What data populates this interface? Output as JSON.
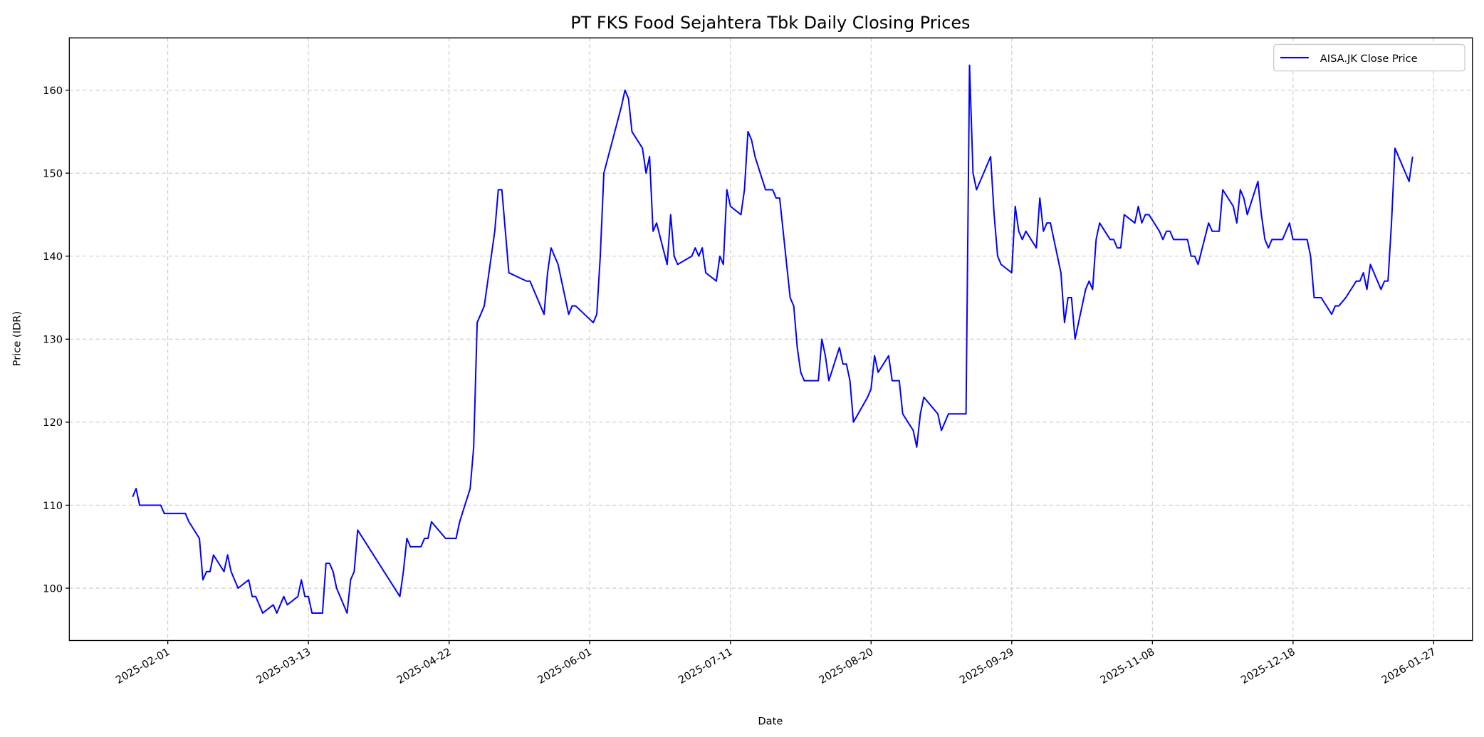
{
  "chart_data": {
    "type": "line",
    "title": "PT FKS Food Sejahtera Tbk Daily Closing Prices",
    "xlabel": "Date",
    "ylabel": "Price (IDR)",
    "xlim": [
      "2025-01-04",
      "2026-02-07"
    ],
    "ylim": [
      93.7,
      166.3
    ],
    "grid": true,
    "legend": "top-right",
    "x_ticks": [
      "2025-02-01",
      "2025-03-13",
      "2025-04-22",
      "2025-06-01",
      "2025-07-11",
      "2025-08-20",
      "2025-09-29",
      "2025-11-08",
      "2025-12-18",
      "2026-01-27"
    ],
    "y_ticks": [
      100,
      110,
      120,
      130,
      140,
      150,
      160
    ],
    "series": [
      {
        "name": "AISA.JK Close Price",
        "color": "#0000ff",
        "x": [
          "2025-01-22",
          "2025-01-23",
          "2025-01-24",
          "2025-01-30",
          "2025-01-31",
          "2025-02-06",
          "2025-02-07",
          "2025-02-10",
          "2025-02-11",
          "2025-02-12",
          "2025-02-13",
          "2025-02-14",
          "2025-02-17",
          "2025-02-18",
          "2025-02-19",
          "2025-02-21",
          "2025-02-24",
          "2025-02-25",
          "2025-02-26",
          "2025-02-28",
          "2025-03-03",
          "2025-03-04",
          "2025-03-06",
          "2025-03-07",
          "2025-03-10",
          "2025-03-11",
          "2025-03-12",
          "2025-03-13",
          "2025-03-14",
          "2025-03-17",
          "2025-03-18",
          "2025-03-19",
          "2025-03-20",
          "2025-03-21",
          "2025-03-24",
          "2025-03-25",
          "2025-03-26",
          "2025-03-27",
          "2025-04-08",
          "2025-04-09",
          "2025-04-10",
          "2025-04-11",
          "2025-04-14",
          "2025-04-15",
          "2025-04-16",
          "2025-04-17",
          "2025-04-21",
          "2025-04-24",
          "2025-04-25",
          "2025-04-28",
          "2025-04-29",
          "2025-04-30",
          "2025-05-02",
          "2025-05-05",
          "2025-05-06",
          "2025-05-07",
          "2025-05-09",
          "2025-05-14",
          "2025-05-15",
          "2025-05-19",
          "2025-05-20",
          "2025-05-21",
          "2025-05-23",
          "2025-05-26",
          "2025-05-27",
          "2025-05-28",
          "2025-06-02",
          "2025-06-03",
          "2025-06-04",
          "2025-06-05",
          "2025-06-10",
          "2025-06-11",
          "2025-06-12",
          "2025-06-13",
          "2025-06-16",
          "2025-06-17",
          "2025-06-18",
          "2025-06-19",
          "2025-06-20",
          "2025-06-23",
          "2025-06-24",
          "2025-06-25",
          "2025-06-26",
          "2025-06-30",
          "2025-07-01",
          "2025-07-02",
          "2025-07-03",
          "2025-07-04",
          "2025-07-07",
          "2025-07-08",
          "2025-07-09",
          "2025-07-10",
          "2025-07-11",
          "2025-07-14",
          "2025-07-15",
          "2025-07-16",
          "2025-07-17",
          "2025-07-18",
          "2025-07-21",
          "2025-07-23",
          "2025-07-24",
          "2025-07-25",
          "2025-07-28",
          "2025-07-29",
          "2025-07-30",
          "2025-07-31",
          "2025-08-01",
          "2025-08-05",
          "2025-08-06",
          "2025-08-07",
          "2025-08-08",
          "2025-08-11",
          "2025-08-12",
          "2025-08-13",
          "2025-08-14",
          "2025-08-15",
          "2025-08-19",
          "2025-08-20",
          "2025-08-21",
          "2025-08-22",
          "2025-08-25",
          "2025-08-26",
          "2025-08-28",
          "2025-08-29",
          "2025-09-01",
          "2025-09-02",
          "2025-09-03",
          "2025-09-04",
          "2025-09-08",
          "2025-09-09",
          "2025-09-11",
          "2025-09-16",
          "2025-09-17",
          "2025-09-18",
          "2025-09-19",
          "2025-09-23",
          "2025-09-24",
          "2025-09-25",
          "2025-09-26",
          "2025-09-29",
          "2025-09-30",
          "2025-10-01",
          "2025-10-02",
          "2025-10-03",
          "2025-10-06",
          "2025-10-07",
          "2025-10-08",
          "2025-10-09",
          "2025-10-10",
          "2025-10-13",
          "2025-10-14",
          "2025-10-15",
          "2025-10-16",
          "2025-10-17",
          "2025-10-20",
          "2025-10-21",
          "2025-10-22",
          "2025-10-23",
          "2025-10-24",
          "2025-10-27",
          "2025-10-28",
          "2025-10-29",
          "2025-10-30",
          "2025-10-31",
          "2025-11-03",
          "2025-11-04",
          "2025-11-05",
          "2025-11-06",
          "2025-11-07",
          "2025-11-10",
          "2025-11-11",
          "2025-11-12",
          "2025-11-13",
          "2025-11-14",
          "2025-11-18",
          "2025-11-19",
          "2025-11-20",
          "2025-11-21",
          "2025-11-24",
          "2025-11-25",
          "2025-11-27",
          "2025-11-28",
          "2025-12-01",
          "2025-12-02",
          "2025-12-03",
          "2025-12-04",
          "2025-12-05",
          "2025-12-08",
          "2025-12-09",
          "2025-12-10",
          "2025-12-11",
          "2025-12-12",
          "2025-12-15",
          "2025-12-16",
          "2025-12-17",
          "2025-12-18",
          "2025-12-22",
          "2025-12-23",
          "2025-12-24",
          "2025-12-26",
          "2025-12-29",
          "2025-12-30",
          "2025-12-31",
          "2026-01-02",
          "2026-01-05",
          "2026-01-06",
          "2026-01-07",
          "2026-01-08",
          "2026-01-09",
          "2026-01-12",
          "2026-01-13",
          "2026-01-14",
          "2026-01-15",
          "2026-01-16",
          "2026-01-20",
          "2026-01-21"
        ],
        "values": [
          111,
          112,
          110,
          110,
          109,
          109,
          108,
          106,
          101,
          102,
          102,
          104,
          102,
          104,
          102,
          100,
          101,
          99,
          99,
          97,
          98,
          97,
          99,
          98,
          99,
          101,
          99,
          99,
          97,
          97,
          103,
          103,
          102,
          100,
          97,
          101,
          102,
          107,
          99,
          102,
          106,
          105,
          105,
          106,
          106,
          108,
          106,
          106,
          108,
          112,
          117,
          132,
          134,
          143,
          148,
          148,
          138,
          137,
          137,
          133,
          138,
          141,
          139,
          133,
          134,
          134,
          132,
          133,
          140,
          150,
          158,
          160,
          159,
          155,
          153,
          150,
          152,
          143,
          144,
          139,
          145,
          140,
          139,
          140,
          141,
          140,
          141,
          138,
          137,
          140,
          139,
          148,
          146,
          145,
          148,
          155,
          154,
          152,
          148,
          148,
          147,
          147,
          135,
          134,
          129,
          126,
          125,
          125,
          130,
          128,
          125,
          129,
          127,
          127,
          125,
          120,
          123,
          124,
          128,
          126,
          128,
          125,
          125,
          121,
          119,
          117,
          121,
          123,
          121,
          119,
          121,
          121,
          163,
          150,
          148,
          152,
          145,
          140,
          139,
          138,
          146,
          143,
          142,
          143,
          141,
          147,
          143,
          144,
          144,
          138,
          132,
          135,
          135,
          130,
          136,
          137,
          136,
          142,
          144,
          142,
          142,
          141,
          141,
          145,
          144,
          146,
          144,
          145,
          145,
          143,
          142,
          143,
          143,
          142,
          142,
          140,
          140,
          139,
          144,
          143,
          143,
          148,
          146,
          144,
          148,
          147,
          145,
          149,
          145,
          142,
          141,
          142,
          142,
          143,
          144,
          142,
          142,
          140,
          135,
          135,
          133,
          134,
          134,
          135,
          137,
          137,
          138,
          136,
          139,
          136,
          137,
          137,
          144,
          153,
          149,
          152
        ]
      }
    ]
  }
}
